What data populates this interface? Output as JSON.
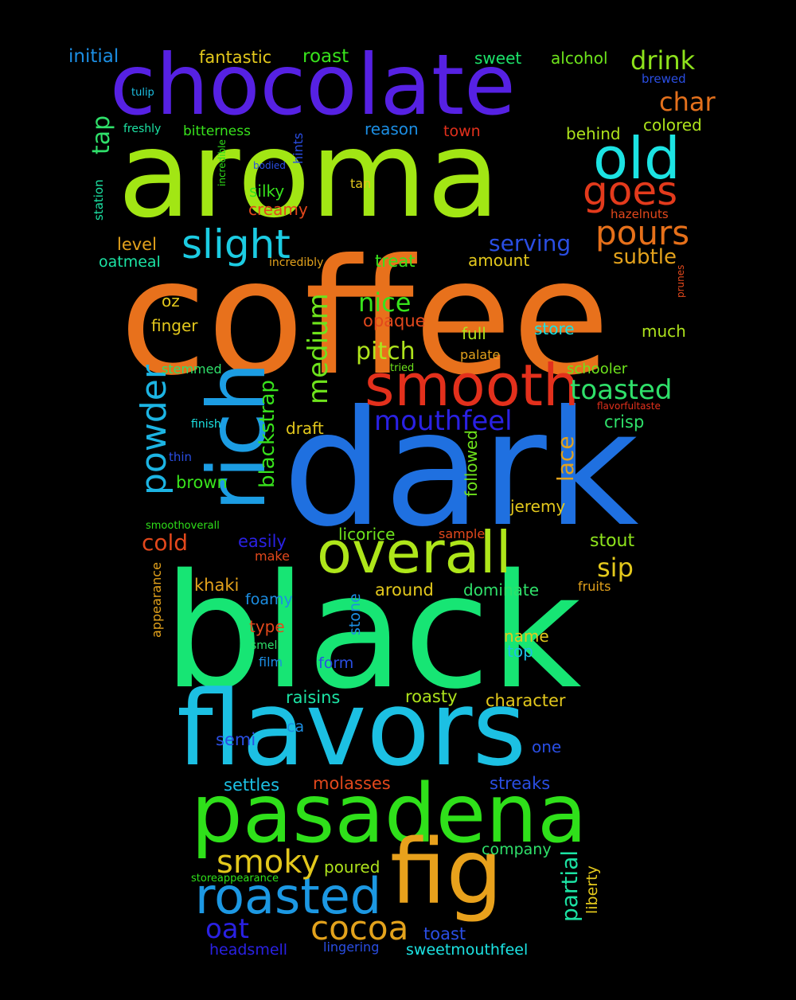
{
  "words": [
    {
      "text": "coffee",
      "color": "#E8711C"
    },
    {
      "text": "black",
      "color": "#17E574"
    },
    {
      "text": "dark",
      "color": "#1F70E0"
    },
    {
      "text": "aroma",
      "color": "#A2E614"
    },
    {
      "text": "flavors",
      "color": "#1CC0E3"
    },
    {
      "text": "chocolate",
      "color": "#5621E3"
    },
    {
      "text": "pasadena",
      "color": "#2FE01A"
    },
    {
      "text": "rich",
      "color": "#1C9DE3"
    },
    {
      "text": "smooth",
      "color": "#E3301C"
    },
    {
      "text": "fig",
      "color": "#E8A11C"
    },
    {
      "text": "overall",
      "color": "#AEE61A"
    },
    {
      "text": "roasted",
      "color": "#1C98E3"
    },
    {
      "text": "old",
      "color": "#1CE3E3"
    },
    {
      "text": "goes",
      "color": "#E33A1C"
    },
    {
      "text": "slight",
      "color": "#1CCCE3"
    },
    {
      "text": "pours",
      "color": "#E6701A"
    },
    {
      "text": "cocoa",
      "color": "#E3A21C"
    },
    {
      "text": "smoky",
      "color": "#E3C81C"
    },
    {
      "text": "powder",
      "color": "#1CB4E3"
    },
    {
      "text": "mouthfeel",
      "color": "#2A21E3"
    },
    {
      "text": "medium",
      "color": "#6EE31C"
    },
    {
      "text": "toasted",
      "color": "#2FE06A"
    },
    {
      "text": "drink",
      "color": "#8EE31C"
    },
    {
      "text": "char",
      "color": "#E3701C"
    },
    {
      "text": "nice",
      "color": "#38E31C"
    },
    {
      "text": "pitch",
      "color": "#AEE31C"
    },
    {
      "text": "serving",
      "color": "#2A4EE3"
    },
    {
      "text": "subtle",
      "color": "#E3A21C"
    },
    {
      "text": "oat",
      "color": "#2A21E3"
    },
    {
      "text": "tap",
      "color": "#2FE06A"
    },
    {
      "text": "sip",
      "color": "#E3C81C"
    },
    {
      "text": "cold",
      "color": "#E3481C"
    },
    {
      "text": "partial",
      "color": "#1CE3A4"
    },
    {
      "text": "blackstrap",
      "color": "#38E31C"
    },
    {
      "text": "lace",
      "color": "#E3A21C"
    },
    {
      "text": "initial",
      "color": "#1C8EE3"
    },
    {
      "text": "fantastic",
      "color": "#E3C81C"
    },
    {
      "text": "roast",
      "color": "#38E31C"
    },
    {
      "text": "sweet",
      "color": "#1CE36A"
    },
    {
      "text": "alcohol",
      "color": "#6EE31C"
    },
    {
      "text": "brewed",
      "color": "#2A4EE3"
    },
    {
      "text": "tulip",
      "color": "#1CC0E3"
    },
    {
      "text": "freshly",
      "color": "#1CE3A4"
    },
    {
      "text": "bitterness",
      "color": "#38E31C"
    },
    {
      "text": "reason",
      "color": "#1C8EE3"
    },
    {
      "text": "town",
      "color": "#E3301C"
    },
    {
      "text": "colored",
      "color": "#AEE31C"
    },
    {
      "text": "behind",
      "color": "#AEE31C"
    },
    {
      "text": "incredible",
      "color": "#2FE01A"
    },
    {
      "text": "bodied",
      "color": "#2A4EE3"
    },
    {
      "text": "hints",
      "color": "#2A4EE3"
    },
    {
      "text": "station",
      "color": "#1CE3A4"
    },
    {
      "text": "tan",
      "color": "#E3C81C"
    },
    {
      "text": "silky",
      "color": "#38E31C"
    },
    {
      "text": "creamy",
      "color": "#E3481C"
    },
    {
      "text": "hazelnuts",
      "color": "#E3481C"
    },
    {
      "text": "level",
      "color": "#E3A21C"
    },
    {
      "text": "oatmeal",
      "color": "#1CE3A4"
    },
    {
      "text": "incredibly",
      "color": "#E3A21C"
    },
    {
      "text": "treat",
      "color": "#38E31C"
    },
    {
      "text": "amount",
      "color": "#E3C81C"
    },
    {
      "text": "prunes",
      "color": "#E3481C"
    },
    {
      "text": "oz",
      "color": "#E3C81C"
    },
    {
      "text": "opaque",
      "color": "#E3481C"
    },
    {
      "text": "finger",
      "color": "#E3C81C"
    },
    {
      "text": "full",
      "color": "#AEE31C"
    },
    {
      "text": "store",
      "color": "#1CE3E3"
    },
    {
      "text": "much",
      "color": "#AEE31C"
    },
    {
      "text": "palate",
      "color": "#E3A21C"
    },
    {
      "text": "stemmed",
      "color": "#2FE06A"
    },
    {
      "text": "tried",
      "color": "#6EE31C"
    },
    {
      "text": "schooler",
      "color": "#6EE31C"
    },
    {
      "text": "flavorfultaste",
      "color": "#E3301C"
    },
    {
      "text": "finish",
      "color": "#1CE3E3"
    },
    {
      "text": "draft",
      "color": "#E3C81C"
    },
    {
      "text": "crisp",
      "color": "#2FE06A"
    },
    {
      "text": "thin",
      "color": "#2A4EE3"
    },
    {
      "text": "brown",
      "color": "#38E31C"
    },
    {
      "text": "followed",
      "color": "#6EE31C"
    },
    {
      "text": "jeremy",
      "color": "#E3C81C"
    },
    {
      "text": "smoothoverall",
      "color": "#2FE01A"
    },
    {
      "text": "easily",
      "color": "#2A21E3"
    },
    {
      "text": "licorice",
      "color": "#6EE31C"
    },
    {
      "text": "sample",
      "color": "#E3481C"
    },
    {
      "text": "stout",
      "color": "#8EE31C"
    },
    {
      "text": "make",
      "color": "#E3481C"
    },
    {
      "text": "khaki",
      "color": "#E3A21C"
    },
    {
      "text": "around",
      "color": "#E3C81C"
    },
    {
      "text": "dominate",
      "color": "#2FE06A"
    },
    {
      "text": "fruits",
      "color": "#E3A21C"
    },
    {
      "text": "appearance",
      "color": "#E3A21C"
    },
    {
      "text": "foamy",
      "color": "#1C8EE3"
    },
    {
      "text": "stone",
      "color": "#1C8EE3"
    },
    {
      "text": "type",
      "color": "#E3481C"
    },
    {
      "text": "name",
      "color": "#E3C81C"
    },
    {
      "text": "smell",
      "color": "#2FE06A"
    },
    {
      "text": "top",
      "color": "#1CC0E3"
    },
    {
      "text": "film",
      "color": "#1C8EE3"
    },
    {
      "text": "form",
      "color": "#2A4EE3"
    },
    {
      "text": "raisins",
      "color": "#1CE3A4"
    },
    {
      "text": "roasty",
      "color": "#AEE31C"
    },
    {
      "text": "character",
      "color": "#E3C81C"
    },
    {
      "text": "semi",
      "color": "#2A4EE3"
    },
    {
      "text": "ca",
      "color": "#1C8EE3"
    },
    {
      "text": "one",
      "color": "#2A4EE3"
    },
    {
      "text": "settles",
      "color": "#1CC0E3"
    },
    {
      "text": "molasses",
      "color": "#E3481C"
    },
    {
      "text": "streaks",
      "color": "#2A4EE3"
    },
    {
      "text": "poured",
      "color": "#AEE31C"
    },
    {
      "text": "company",
      "color": "#2FE06A"
    },
    {
      "text": "liberty",
      "color": "#E3C81C"
    },
    {
      "text": "storeappearance",
      "color": "#2FE01A"
    },
    {
      "text": "toast",
      "color": "#2A4EE3"
    },
    {
      "text": "headsmell",
      "color": "#2A21E3"
    },
    {
      "text": "lingering",
      "color": "#2A4EE3"
    },
    {
      "text": "sweetmouthfeel",
      "color": "#1CE3E3"
    }
  ]
}
